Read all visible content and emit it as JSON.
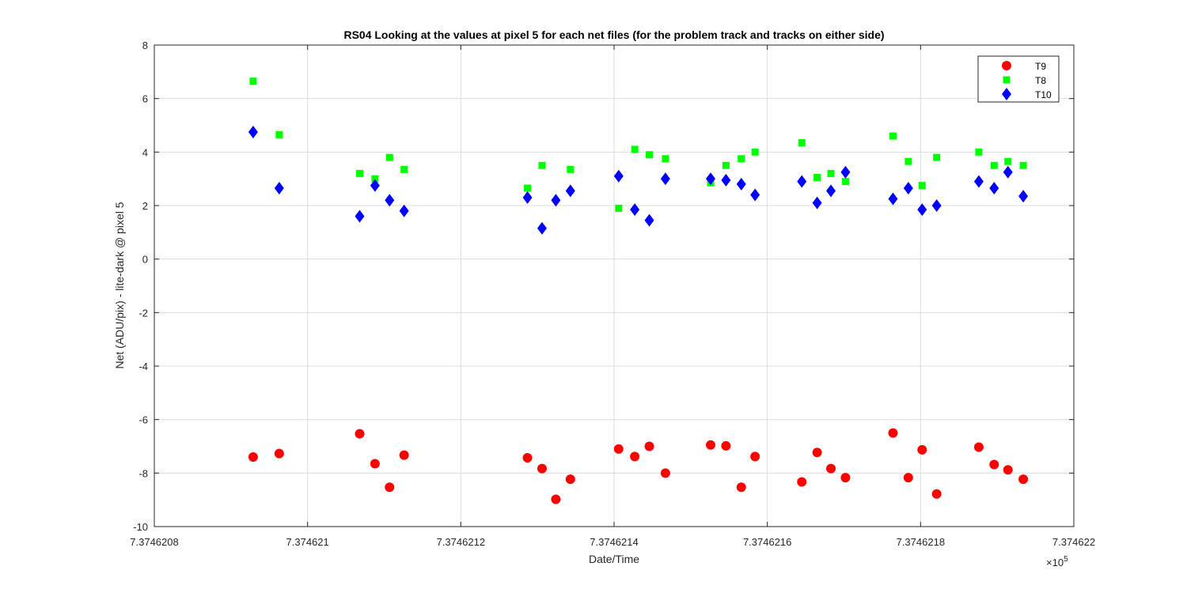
{
  "chart_data": {
    "type": "scatter",
    "title": "RS04  Looking at the values at pixel 5 for each net files (for the problem track and tracks on either side)",
    "xlabel": "Date/Time",
    "ylabel": "Net (ADU/pix) - lite-dark @ pixel 5",
    "x_exponent_label": "×10",
    "x_exponent_power": "5",
    "xlim": [
      737462.08,
      737462.2
    ],
    "ylim": [
      -10,
      8
    ],
    "xticks": [
      737462.08,
      737462.1,
      737462.12,
      737462.14,
      737462.16,
      737462.18,
      737462.2
    ],
    "xtick_labels": [
      "7.3746208",
      "7.374621",
      "7.3746212",
      "7.3746214",
      "7.3746216",
      "7.3746218",
      "7.374622"
    ],
    "yticks": [
      -10,
      -8,
      -6,
      -4,
      -2,
      0,
      2,
      4,
      6,
      8
    ],
    "ytick_labels": [
      "-10",
      "-8",
      "-6",
      "-4",
      "-2",
      "0",
      "2",
      "4",
      "6",
      "8"
    ],
    "grid": true,
    "legend_position": "top-right",
    "series": [
      {
        "name": "T9",
        "marker": "circle",
        "color": "#ff0000",
        "x": [
          737462.0929,
          737462.0963,
          737462.1068,
          737462.1088,
          737462.1107,
          737462.1126,
          737462.1287,
          737462.1306,
          737462.1324,
          737462.1343,
          737462.1406,
          737462.1427,
          737462.1446,
          737462.1467,
          737462.1526,
          737462.1546,
          737462.1566,
          737462.1584,
          737462.1645,
          737462.1665,
          737462.1683,
          737462.1702,
          737462.1764,
          737462.1784,
          737462.1802,
          737462.1821,
          737462.1876,
          737462.1896,
          737462.1914,
          737462.1934
        ],
        "y": [
          -7.4,
          -7.27,
          -6.53,
          -7.65,
          -8.53,
          -7.33,
          -7.43,
          -7.83,
          -8.98,
          -8.23,
          -7.1,
          -7.38,
          -7.0,
          -8.0,
          -6.95,
          -6.98,
          -8.53,
          -7.38,
          -8.33,
          -7.23,
          -7.83,
          -8.17,
          -6.5,
          -8.17,
          -7.13,
          -8.78,
          -7.03,
          -7.68,
          -7.88,
          -8.23
        ]
      },
      {
        "name": "T8",
        "marker": "square",
        "color": "#00ff00",
        "x": [
          737462.0929,
          737462.0963,
          737462.1068,
          737462.1088,
          737462.1107,
          737462.1126,
          737462.1287,
          737462.1306,
          737462.1343,
          737462.1406,
          737462.1427,
          737462.1446,
          737462.1467,
          737462.1526,
          737462.1546,
          737462.1566,
          737462.1584,
          737462.1645,
          737462.1665,
          737462.1683,
          737462.1702,
          737462.1764,
          737462.1784,
          737462.1802,
          737462.1821,
          737462.1876,
          737462.1896,
          737462.1914,
          737462.1934
        ],
        "y": [
          6.65,
          4.65,
          3.2,
          3.0,
          3.8,
          3.35,
          2.65,
          3.5,
          3.35,
          1.9,
          4.1,
          3.9,
          3.75,
          2.85,
          3.5,
          3.75,
          4.0,
          4.35,
          3.05,
          3.2,
          2.9,
          4.6,
          3.65,
          2.75,
          3.8,
          4.0,
          3.5,
          3.65,
          3.5
        ]
      },
      {
        "name": "T10",
        "marker": "diamond",
        "color": "#0000ff",
        "x": [
          737462.0929,
          737462.0963,
          737462.1068,
          737462.1088,
          737462.1107,
          737462.1126,
          737462.1287,
          737462.1306,
          737462.1324,
          737462.1343,
          737462.1406,
          737462.1427,
          737462.1446,
          737462.1467,
          737462.1526,
          737462.1546,
          737462.1566,
          737462.1584,
          737462.1645,
          737462.1665,
          737462.1683,
          737462.1702,
          737462.1764,
          737462.1784,
          737462.1802,
          737462.1821,
          737462.1876,
          737462.1896,
          737462.1914,
          737462.1934
        ],
        "y": [
          4.75,
          2.65,
          1.6,
          2.75,
          2.2,
          1.8,
          2.3,
          1.15,
          2.2,
          2.55,
          3.1,
          1.85,
          1.45,
          3.0,
          3.0,
          2.95,
          2.8,
          2.4,
          2.9,
          2.1,
          2.55,
          3.25,
          2.25,
          2.65,
          1.85,
          2.0,
          2.9,
          2.65,
          3.25,
          2.35
        ]
      }
    ]
  }
}
